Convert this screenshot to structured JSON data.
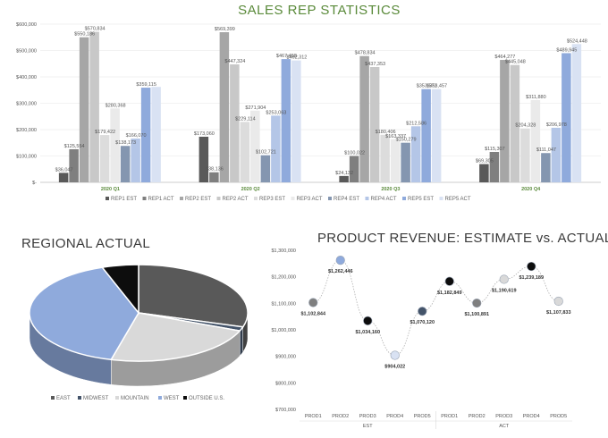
{
  "page": {
    "title": "SALES REP STATISTICS"
  },
  "chart_data": [
    {
      "type": "bar",
      "title": "SALES REP STATISTICS",
      "categories": [
        "2020 Q1",
        "2020 Q2",
        "2020 Q3",
        "2020 Q4"
      ],
      "ylim": [
        0,
        600000
      ],
      "yticks": [
        "$-",
        "$100,000",
        "$200,000",
        "$300,000",
        "$400,000",
        "$500,000",
        "$600,000"
      ],
      "grid": true,
      "legend_position": "bottom",
      "series": [
        {
          "name": "REP1 EST",
          "color": "#595959",
          "values": [
            36047,
            173060,
            24132,
            69305
          ],
          "labels": [
            "$36,047",
            "$173,060",
            "$24,132",
            "$69,305"
          ]
        },
        {
          "name": "REP1 ACT",
          "color": "#7f7f7f",
          "values": [
            125554,
            38136,
            100022,
            115307
          ],
          "labels": [
            "$125,554",
            "$38,136",
            "$100,022",
            "$115,307"
          ]
        },
        {
          "name": "REP2 EST",
          "color": "#a6a6a6",
          "values": [
            550186,
            569399,
            478834,
            464277
          ],
          "labels": [
            "$550,186",
            "$569,399",
            "$478,834",
            "$464,277"
          ]
        },
        {
          "name": "REP2 ACT",
          "color": "#c8c8c8",
          "values": [
            570834,
            447324,
            437353,
            445048
          ],
          "labels": [
            "$570,834",
            "$447,324",
            "$437,353",
            "$445,048"
          ]
        },
        {
          "name": "REP3 EST",
          "color": "#dcdcdc",
          "values": [
            179422,
            229114,
            180406,
            204328
          ],
          "labels": [
            "$179,422",
            "$229,114",
            "$180,406",
            "$204,328"
          ]
        },
        {
          "name": "REP3 ACT",
          "color": "#eaeaea",
          "values": [
            280368,
            271904,
            163337,
            311880
          ],
          "labels": [
            "$280,368",
            "$271,904",
            "$163,337",
            "$311,880"
          ]
        },
        {
          "name": "REP4 EST",
          "color": "#8496b0",
          "values": [
            138173,
            102721,
            150279,
            111047
          ],
          "labels": [
            "$138,173",
            "$102,721",
            "$150,279",
            "$111,047"
          ]
        },
        {
          "name": "REP4 ACT",
          "color": "#b4c6e7",
          "values": [
            166070,
            253063,
            212586,
            206978
          ],
          "labels": [
            "$166,070",
            "$253,063",
            "$212,586",
            "$206,978"
          ]
        },
        {
          "name": "REP5 EST",
          "color": "#8faadc",
          "values": [
            359115,
            467458,
            353571,
            489945
          ],
          "labels": [
            "$359,115",
            "$467,458",
            "$353,571",
            "$489,945"
          ]
        },
        {
          "name": "REP5 ACT",
          "color": "#d9e2f3",
          "values": [
            362000,
            462312,
            353457,
            524448
          ],
          "labels": [
            "",
            "$462,312",
            "$353,457",
            "$524,448"
          ]
        }
      ]
    },
    {
      "type": "pie",
      "title": "REGIONAL ACTUAL",
      "legend_position": "bottom",
      "categories": [
        "EAST",
        "MIDWEST",
        "MOUNTAIN",
        "WEST",
        "OUTSIDE U.S."
      ],
      "values": [
        22,
        1,
        17,
        30,
        4
      ],
      "colors": [
        "#595959",
        "#44546a",
        "#d9d9d9",
        "#8faadc",
        "#0d0d0d"
      ],
      "legend": [
        "EAST",
        "MIDWEST",
        "MOUNTAIN",
        "WEST",
        "OUTSIDE U.S."
      ]
    },
    {
      "type": "scatter",
      "title": "PRODUCT REVENUE: ESTIMATE vs. ACTUAL",
      "ylim": [
        700000,
        1300000
      ],
      "yticks": [
        "$700,000",
        "$800,000",
        "$900,000",
        "$1,000,000",
        "$1,100,000",
        "$1,200,000",
        "$1,300,000"
      ],
      "categories": [
        "PROD1",
        "PROD2",
        "PROD3",
        "PROD4",
        "PROD5",
        "PROD1",
        "PROD2",
        "PROD3",
        "PROD4",
        "PROD5"
      ],
      "groups": [
        "EST",
        "ACT"
      ],
      "values": [
        1102844,
        1262446,
        1034160,
        904022,
        1070120,
        1182849,
        1100891,
        1190619,
        1239189,
        1107833
      ],
      "labels": [
        "$1,102,844",
        "$1,262,446",
        "$1,034,160",
        "$904,022",
        "$1,070,120",
        "$1,182,849",
        "$1,100,891",
        "$1,190,619",
        "$1,239,189",
        "$1,107,833"
      ],
      "colors": [
        "#7f7f7f",
        "#8faadc",
        "#0d0d0d",
        "#d9e2f3",
        "#44546a",
        "#0d0d0d",
        "#7f7f7f",
        "#d9d9d9",
        "#0d0d0d",
        "#d9d9d9"
      ]
    }
  ]
}
